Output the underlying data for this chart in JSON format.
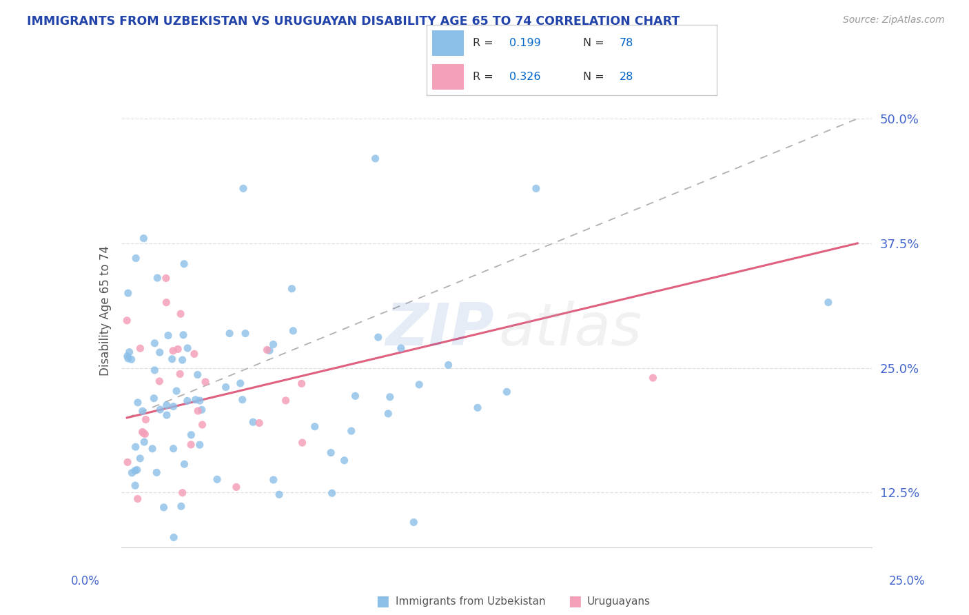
{
  "title": "IMMIGRANTS FROM UZBEKISTAN VS URUGUAYAN DISABILITY AGE 65 TO 74 CORRELATION CHART",
  "source_text": "Source: ZipAtlas.com",
  "ylabel": "Disability Age 65 to 74",
  "ytick_labels": [
    "12.5%",
    "25.0%",
    "37.5%",
    "50.0%"
  ],
  "ytick_values": [
    0.125,
    0.25,
    0.375,
    0.5
  ],
  "xlim": [
    -0.002,
    0.255
  ],
  "ylim": [
    0.07,
    0.545
  ],
  "r_blue": 0.199,
  "n_blue": 78,
  "r_pink": 0.326,
  "n_pink": 28,
  "blue_color": "#8bbfe8",
  "pink_color": "#f4a0b8",
  "trend_blue_color": "#b0b0b0",
  "trend_pink_color": "#e06080",
  "background_color": "#ffffff",
  "grid_color": "#e0e0e0",
  "title_color": "#2244aa",
  "axis_label_color": "#4466cc",
  "legend_r_color": "#0066cc",
  "legend_label_color": "#333333",
  "watermark_zip_color": "#3366bb",
  "watermark_atlas_color": "#aaaaaa"
}
